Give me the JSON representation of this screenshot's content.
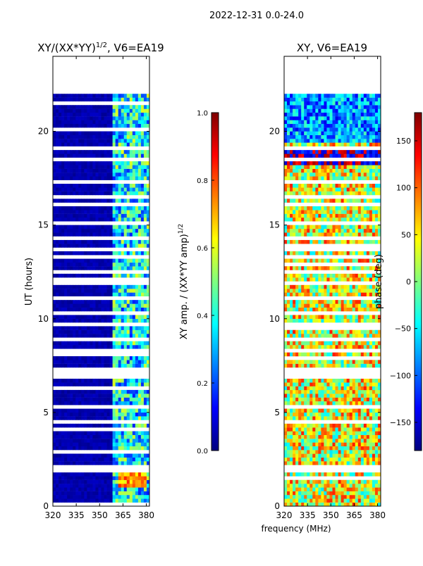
{
  "suptitle": "2022-12-31 0.0-24.0",
  "shared_xlabel": "frequency (MHz)",
  "chart_data": [
    {
      "type": "heatmap",
      "title": "XY/(XX*YY)1/2, V6=EA19",
      "title_main": "XY/(XX*YY)",
      "title_sup": "1/2",
      "title_tail": ", V6=EA19",
      "xlabel": "",
      "ylabel": "UT (hours)",
      "xlim": [
        320,
        382
      ],
      "ylim": [
        0,
        24
      ],
      "xticks": [
        320,
        335,
        350,
        365,
        380
      ],
      "yticks": [
        0,
        5,
        10,
        15,
        20
      ],
      "data_extent_hours": [
        0,
        22
      ],
      "low_band_MHz": [
        320,
        359
      ],
      "high_band_MHz": [
        359,
        382
      ],
      "colorbar": {
        "label": "XY amp. / (XX*YY amp)1/2",
        "label_main": "XY amp. / (XX*YY amp)",
        "label_sup": "1/2",
        "range": [
          0.0,
          1.0
        ],
        "ticks": [
          "0.0",
          "0.2",
          "0.4",
          "0.6",
          "0.8",
          "1.0"
        ]
      }
    },
    {
      "type": "heatmap",
      "title": "XY, V6=EA19",
      "xlabel": "frequency (MHz)",
      "ylabel": "",
      "xlim": [
        320,
        382
      ],
      "ylim": [
        0,
        24
      ],
      "xticks": [
        320,
        335,
        350,
        365,
        380
      ],
      "yticks": [
        0,
        5,
        10,
        15,
        20
      ],
      "data_extent_hours": [
        0,
        22
      ],
      "colorbar": {
        "label": "phase (deg)",
        "range": [
          -180,
          180
        ],
        "ticks": [
          "150",
          "100",
          "50",
          "0",
          "−50",
          "−100",
          "−150"
        ]
      }
    }
  ],
  "colors": {
    "jet": [
      "#00007f",
      "#0000ff",
      "#007fff",
      "#00ffff",
      "#7fff7f",
      "#ffff00",
      "#ff7f00",
      "#ff0000",
      "#7f0000"
    ]
  }
}
